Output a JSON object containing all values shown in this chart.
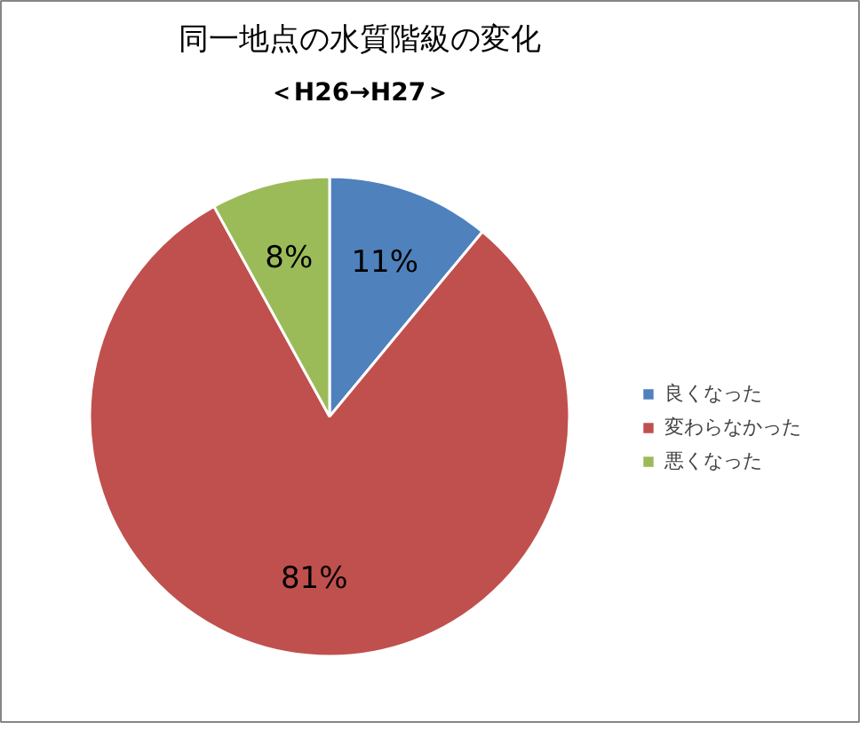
{
  "chart_data": {
    "type": "pie",
    "title": "同一地点の水質階級の変化",
    "subtitle": "＜H26→H27＞",
    "categories": [
      "良くなった",
      "変わらなかった",
      "悪くなった"
    ],
    "values": [
      11,
      81,
      8
    ],
    "colors": [
      "#4f81bd",
      "#c0504d",
      "#9bbb59"
    ],
    "value_labels": [
      "11%",
      "81%",
      "8%"
    ],
    "legend": "right"
  }
}
